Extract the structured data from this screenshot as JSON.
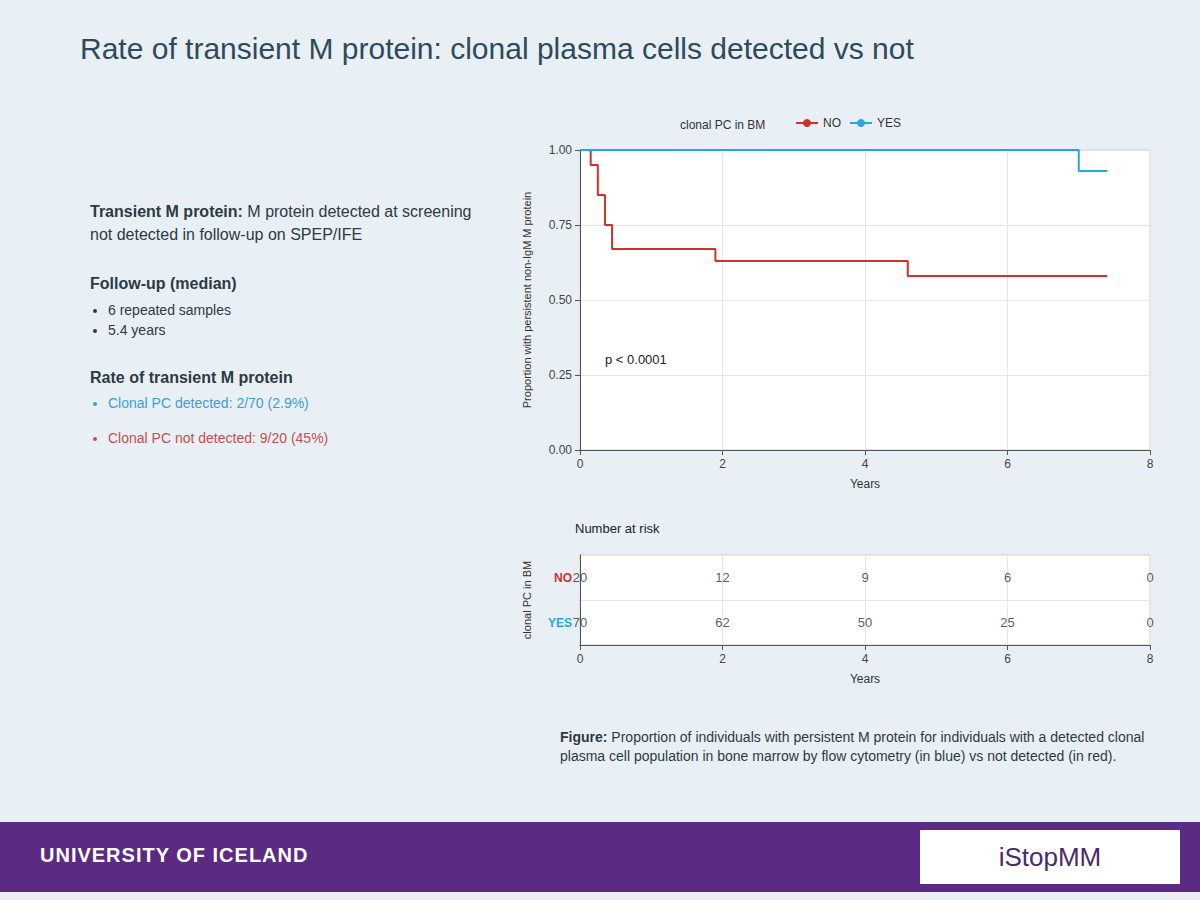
{
  "slide": {
    "title": "Rate of transient M protein: clonal plasma cells detected vs not",
    "definition": {
      "term": "Transient M protein:",
      "text": "M protein detected at screening not detected in follow-up on SPEP/IFE"
    },
    "follow_up": {
      "heading": "Follow-up (median)",
      "items": [
        "6 repeated samples",
        "5.4 years"
      ]
    },
    "rate": {
      "heading": "Rate of transient M protein",
      "items": [
        {
          "text": "Clonal PC detected: 2/70 (2.9%)",
          "color": "#3a9fd6"
        },
        {
          "text": "Clonal PC not detected: 9/20 (45%)",
          "color": "#c0504d"
        }
      ]
    },
    "caption": {
      "label": "Figure:",
      "text": "Proportion of individuals with persistent M protein for individuals with a detected clonal plasma cell population in bone marrow by flow cytometry (in blue) vs not detected (in red)."
    },
    "footer": {
      "left": "UNIVERSITY OF ICELAND",
      "right": "iStopMM"
    }
  },
  "chart_data": {
    "type": "line",
    "legend_title": "clonal PC in BM",
    "legend": "top",
    "x_label": "Years",
    "y_label": "Proportion with persistent non-IgM M protein",
    "xlim": [
      0,
      8
    ],
    "xticks": [
      0,
      2,
      4,
      6,
      8
    ],
    "ylim": [
      0,
      1
    ],
    "yticks": [
      {
        "value": 0,
        "label": "0.00"
      },
      {
        "value": 0.25,
        "label": "0.25"
      },
      {
        "value": 0.5,
        "label": "0.50"
      },
      {
        "value": 0.75,
        "label": "0.75"
      },
      {
        "value": 1,
        "label": "1.00"
      }
    ],
    "grid": true,
    "annotations": [
      "p < 0.0001"
    ],
    "series": [
      {
        "name": "NO",
        "color": "#d0312d",
        "line_style": "step",
        "x": [
          0,
          0.15,
          0.25,
          0.35,
          0.45,
          1.9,
          4.6,
          7.4
        ],
        "values": [
          1,
          0.95,
          0.85,
          0.75,
          0.67,
          0.63,
          0.58,
          0.58
        ]
      },
      {
        "name": "YES",
        "color": "#2aa7d8",
        "line_style": "step",
        "x": [
          0,
          7.0,
          7.4
        ],
        "values": [
          1,
          0.93,
          0.93
        ]
      }
    ],
    "risk_table": {
      "title": "Number at risk",
      "y_label": "clonal PC in BM",
      "x_label": "Years",
      "xticks": [
        0,
        2,
        4,
        6,
        8
      ],
      "rows": [
        {
          "name": "NO",
          "color": "#d0312d",
          "values": [
            20,
            12,
            9,
            6,
            0
          ]
        },
        {
          "name": "YES",
          "color": "#2aa7d8",
          "values": [
            70,
            62,
            50,
            25,
            0
          ]
        }
      ]
    }
  }
}
